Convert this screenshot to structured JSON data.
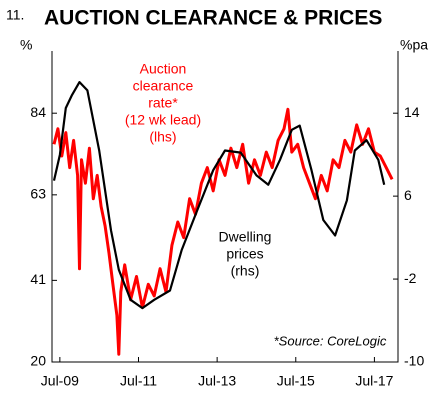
{
  "chart_data": {
    "type": "line",
    "number": "11.",
    "title": "AUCTION CLEARANCE & PRICES",
    "y_label": "%",
    "y2_label": "%pa",
    "xlim": [
      2009.3,
      2018.1
    ],
    "xticks": [
      {
        "value": 2009.5,
        "label": "Jul-09"
      },
      {
        "value": 2011.5,
        "label": "Jul-11"
      },
      {
        "value": 2013.5,
        "label": "Jul-13"
      },
      {
        "value": 2015.5,
        "label": "Jul-15"
      },
      {
        "value": 2017.5,
        "label": "Jul-17"
      }
    ],
    "ylim": [
      20,
      100
    ],
    "yticks": [
      20,
      41,
      63,
      84
    ],
    "y2lim": [
      -10,
      20
    ],
    "y2ticks": [
      -10,
      -2,
      6,
      14
    ],
    "series": [
      {
        "name": "Auction clearance rate",
        "color": "#ff0000",
        "x": [
          2009.35,
          2009.45,
          2009.55,
          2009.65,
          2009.75,
          2009.85,
          2009.95,
          2010.0,
          2010.05,
          2010.15,
          2010.25,
          2010.35,
          2010.45,
          2010.55,
          2010.65,
          2010.75,
          2010.85,
          2010.95,
          2011.0,
          2011.05,
          2011.15,
          2011.3,
          2011.45,
          2011.6,
          2011.75,
          2011.9,
          2012.05,
          2012.2,
          2012.35,
          2012.5,
          2012.65,
          2012.8,
          2012.95,
          2013.1,
          2013.25,
          2013.4,
          2013.55,
          2013.7,
          2013.85,
          2014.0,
          2014.15,
          2014.3,
          2014.45,
          2014.6,
          2014.75,
          2014.9,
          2015.05,
          2015.2,
          2015.3,
          2015.4,
          2015.55,
          2015.7,
          2015.85,
          2016.0,
          2016.15,
          2016.3,
          2016.45,
          2016.6,
          2016.75,
          2016.9,
          2017.05,
          2017.2,
          2017.35,
          2017.5,
          2017.65,
          2017.8,
          2017.95
        ],
        "values": [
          76,
          80,
          73,
          79,
          70,
          77,
          68,
          44,
          72,
          66,
          75,
          62,
          68,
          60,
          55,
          48,
          40,
          32,
          22,
          38,
          45,
          36,
          42,
          34,
          40,
          37,
          44,
          38,
          50,
          56,
          52,
          62,
          58,
          66,
          70,
          64,
          72,
          68,
          75,
          70,
          76,
          66,
          72,
          68,
          74,
          70,
          77,
          80,
          85,
          74,
          76,
          70,
          66,
          62,
          68,
          64,
          72,
          70,
          77,
          74,
          81,
          76,
          80,
          74,
          73,
          70,
          67
        ]
      },
      {
        "name": "Dwelling prices",
        "color": "#000000",
        "axis": "y2",
        "x": [
          2009.35,
          2009.5,
          2009.65,
          2009.8,
          2010.0,
          2010.2,
          2010.5,
          2010.8,
          2011.0,
          2011.3,
          2011.6,
          2011.9,
          2012.3,
          2012.6,
          2013.0,
          2013.4,
          2013.7,
          2014.1,
          2014.5,
          2014.8,
          2015.1,
          2015.4,
          2015.6,
          2015.9,
          2016.2,
          2016.5,
          2016.8,
          2017.0,
          2017.3,
          2017.6,
          2017.75
        ],
        "values": [
          7.5,
          10,
          14.5,
          15.7,
          17,
          16.2,
          10.4,
          2.7,
          -1.1,
          -4,
          -4.8,
          -4,
          -3.1,
          0.8,
          4.7,
          8.5,
          10.4,
          10.2,
          8,
          7.1,
          9.5,
          12.4,
          12.8,
          8.5,
          3.7,
          2.2,
          5.6,
          10.4,
          11.4,
          9.5,
          7.1
        ]
      }
    ],
    "annotations": [
      {
        "lines": [
          "Auction",
          "clearance",
          "rate*",
          "(12 wk lead)",
          "(lhs)"
        ],
        "color": "#ff0000"
      },
      {
        "lines": [
          "Dwelling",
          "prices",
          "(rhs)"
        ],
        "color": "#000000"
      },
      {
        "lines": [
          "*Source: CoreLogic"
        ],
        "color": "#000000"
      }
    ]
  }
}
